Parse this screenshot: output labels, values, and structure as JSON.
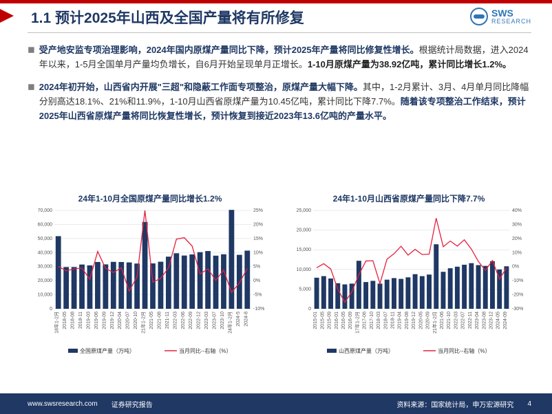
{
  "header": {
    "title": "1.1 预计2025年山西及全国产量将有所修复",
    "logo_text": "SWS",
    "logo_sub": "RESEARCH"
  },
  "bullets": [
    {
      "lead": "受产地安监专项治理影响，2024年国内原煤产量同比下降，预计2025年产量将同比修复性增长。",
      "body1": "根据统计局数据，进入2024年以来，1-5月全国单月产量均负增长，自6月开始呈现单月正增长。",
      "bold_end": "1-10月原煤产量为38.92亿吨，累计同比增长1.2%。"
    },
    {
      "lead": "2024年初开始，山西省内开展\"三超\"和隐蔽工作面专项整治，原煤产量大幅下降。",
      "body1": "其中，1-2月累计、3月、4月单月同比降幅分别高达18.1%、21%和11.9%，1-10月山西省原煤产量为10.45亿吨，累计同比下降7.7%。",
      "bold_end": "随着该专项整治工作结束，预计2025年山西省原煤产量将同比恢复性增长，预计恢复到接近2023年13.6亿吨的产量水平。"
    }
  ],
  "chart1": {
    "title": "24年1-10月全国原煤产量同比增长1.2%",
    "type": "bar+line",
    "ylabel_left_max": 70000,
    "ylabel_left_step": 10000,
    "ylabel_right_min": -10,
    "ylabel_right_max": 25,
    "ylabel_right_step": 5,
    "x_labels": [
      "18年1-2月",
      "2018-05",
      "2018-08",
      "2018-11",
      "2019-03",
      "2019-06",
      "2019-09",
      "2019-12",
      "2020-04",
      "2020-07",
      "2020-10",
      "21年1-2月",
      "2021-05",
      "2021-08",
      "2021-11",
      "2022-03",
      "2022-06",
      "2022-09",
      "2022-12",
      "2023-03",
      "2023-07",
      "2023-10",
      "24年1-2月",
      "2024-5",
      "2024-8"
    ],
    "bar_values": [
      51700,
      29700,
      29700,
      31500,
      30900,
      33300,
      31600,
      33400,
      33300,
      33000,
      32200,
      61800,
      32300,
      33500,
      37100,
      39500,
      37900,
      38700,
      40300,
      41100,
      37800,
      38800,
      70400,
      38400,
      41400
    ],
    "line_values": [
      5.1,
      3.5,
      4.2,
      4.5,
      0.5,
      10.4,
      4.4,
      2.9,
      4.6,
      -3.7,
      1.4,
      25,
      -0.5,
      0.8,
      4.6,
      14.8,
      15.3,
      12.3,
      2.4,
      4.2,
      0.1,
      3.8,
      -4.2,
      -0.8,
      4.4
    ],
    "bar_color": "#1f3864",
    "line_color": "#e5203e",
    "grid_color": "#d6d6d6",
    "bg_color": "#ffffff",
    "legend": [
      "全国原煤产量（万吨）",
      "当月同比--右轴（%）"
    ],
    "axis_fontsize": 7,
    "legend_fontsize": 8
  },
  "chart2": {
    "title": "24年1-10月山西省原煤产量同比下降7.7%",
    "type": "bar+line",
    "ylabel_left_max": 25000,
    "ylabel_left_step": 5000,
    "ylabel_right_min": -30,
    "ylabel_right_max": 40,
    "ylabel_right_step": 10,
    "x_labels": [
      "2015-01",
      "2015-05",
      "2015-09",
      "2016-01",
      "2016-05",
      "2016-09",
      "17年1-2月",
      "2017-06",
      "2017-10",
      "2018-03",
      "2018-07",
      "2018-11",
      "2019-04",
      "2019-08",
      "2019-12",
      "2020-05",
      "2020-09",
      "21年1-2月",
      "2021-06",
      "2021-10",
      "2022-03",
      "2022-07",
      "2022-11",
      "2023-04",
      "2023-08",
      "2023-12",
      "2024-05",
      "2024-09"
    ],
    "bar_values": [
      7900,
      8300,
      7700,
      6500,
      6200,
      6400,
      12200,
      6800,
      7100,
      6400,
      7400,
      7800,
      7600,
      8000,
      8800,
      8300,
      8700,
      16400,
      9400,
      10300,
      10700,
      11200,
      11600,
      11100,
      10900,
      12100,
      10000,
      10800
    ],
    "line_values": [
      -0.8,
      2.1,
      -1.7,
      -16,
      -25.4,
      -17.9,
      -5.7,
      4,
      4.2,
      -12.1,
      5.3,
      9.2,
      14.5,
      8.2,
      12.3,
      8.6,
      8.9,
      34.5,
      14.2,
      18.2,
      14.6,
      19.1,
      12.5,
      3.7,
      -2.7,
      4.4,
      -8.9,
      -0.9
    ],
    "bar_color": "#1f3864",
    "line_color": "#e5203e",
    "grid_color": "#d6d6d6",
    "bg_color": "#ffffff",
    "legend": [
      "山西原煤产量（万吨）",
      "当月同比--右轴（%）"
    ],
    "axis_fontsize": 7,
    "legend_fontsize": 8
  },
  "footer": {
    "url": "www.swsresearch.com",
    "type": "证券研究报告",
    "source": "资料来源：国家统计局，申万宏源研究",
    "page": "4"
  }
}
